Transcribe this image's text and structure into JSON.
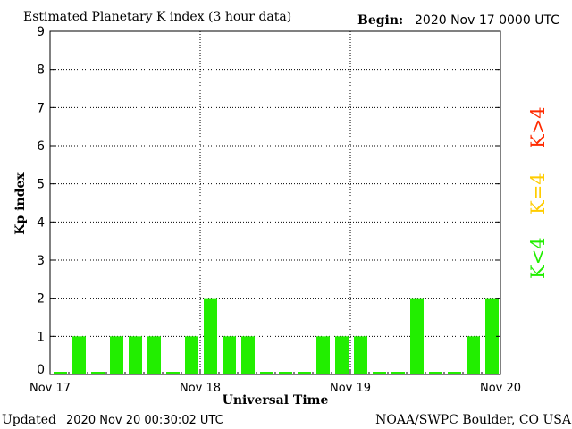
{
  "header": {
    "title": "Estimated Planetary K index (3 hour data)",
    "begin_label": "Begin:",
    "begin_value": "2020 Nov 17 0000 UTC"
  },
  "footer": {
    "updated_label": "Updated",
    "updated_value": "2020 Nov 20 00:30:02 UTC",
    "credit": "NOAA/SWPC Boulder, CO USA"
  },
  "legend": [
    {
      "label": "K>4",
      "color": "#ff2a00"
    },
    {
      "label": "K=4",
      "color": "#ffcc00"
    },
    {
      "label": "K<4",
      "color": "#22ee00"
    }
  ],
  "chart_data": {
    "type": "bar",
    "title": "Estimated Planetary K index (3 hour data)",
    "xlabel": "Universal Time",
    "ylabel": "Kp index",
    "ylim": [
      0,
      9
    ],
    "yticks": [
      0,
      1,
      2,
      3,
      4,
      5,
      6,
      7,
      8,
      9
    ],
    "xtick_labels": [
      "Nov 17",
      "Nov 18",
      "Nov 19",
      "Nov 20"
    ],
    "grid": true,
    "bar_color": "#22ee00",
    "categories": [
      "Nov 17 00",
      "Nov 17 03",
      "Nov 17 06",
      "Nov 17 09",
      "Nov 17 12",
      "Nov 17 15",
      "Nov 17 18",
      "Nov 17 21",
      "Nov 18 00",
      "Nov 18 03",
      "Nov 18 06",
      "Nov 18 09",
      "Nov 18 12",
      "Nov 18 15",
      "Nov 18 18",
      "Nov 18 21",
      "Nov 19 00",
      "Nov 19 03",
      "Nov 19 06",
      "Nov 19 09",
      "Nov 19 12",
      "Nov 19 15",
      "Nov 19 18",
      "Nov 19 21"
    ],
    "values": [
      0,
      1,
      0,
      1,
      1,
      1,
      0,
      1,
      2,
      1,
      1,
      0,
      0,
      0,
      1,
      1,
      1,
      0,
      0,
      2,
      0,
      0,
      1,
      2
    ]
  }
}
